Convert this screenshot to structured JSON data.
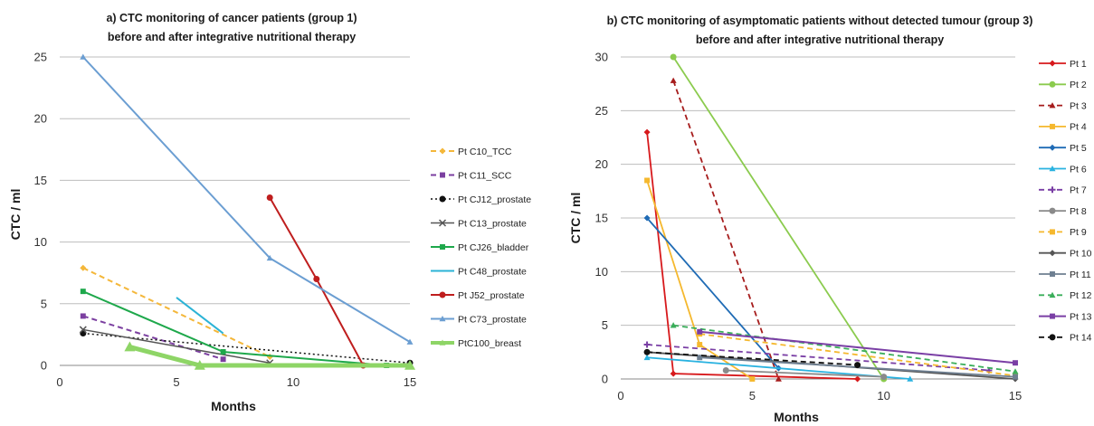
{
  "chart_data": [
    {
      "type": "line",
      "title_lines": [
        "a) CTC monitoring of cancer patients (group 1)",
        "before and after integrative nutritional therapy"
      ],
      "xlabel": "Months",
      "ylabel": "CTC / ml",
      "xlim": [
        0,
        15
      ],
      "ylim": [
        0,
        25
      ],
      "xticks": [
        0,
        5,
        10,
        15
      ],
      "yticks": [
        0,
        5,
        10,
        15,
        20,
        25
      ],
      "grid": "horizontal",
      "legend_position": "right",
      "series": [
        {
          "name": "Pt C10_TCC",
          "color": "#F4B73A",
          "dash": "dashed",
          "marker": "diamond",
          "width": 2,
          "x": [
            1,
            9
          ],
          "y": [
            7.9,
            0.7
          ]
        },
        {
          "name": "Pt C11_SCC",
          "color": "#7B3FA0",
          "dash": "dashed",
          "marker": "square",
          "width": 2,
          "x": [
            1,
            7
          ],
          "y": [
            4.0,
            0.5
          ]
        },
        {
          "name": "Pt CJ12_prostate",
          "color": "#111111",
          "dash": "dotted",
          "marker": "circle",
          "width": 1.5,
          "x": [
            1,
            15
          ],
          "y": [
            2.6,
            0.2
          ]
        },
        {
          "name": "Pt C13_prostate",
          "color": "#555555",
          "dash": "solid",
          "marker": "x",
          "width": 1.5,
          "x": [
            1,
            9
          ],
          "y": [
            2.9,
            0.2
          ]
        },
        {
          "name": "Pt CJ26_bladder",
          "color": "#1EA84B",
          "dash": "solid",
          "marker": "square",
          "width": 2,
          "x": [
            1,
            7,
            14
          ],
          "y": [
            6.0,
            1.1,
            0
          ]
        },
        {
          "name": "Pt C48_prostate",
          "color": "#2BB3D6",
          "dash": "solid",
          "marker": "none",
          "width": 2,
          "x": [
            5,
            7
          ],
          "y": [
            5.5,
            2.6
          ]
        },
        {
          "name": "Pt J52_prostate",
          "color": "#BF1E1E",
          "dash": "solid",
          "marker": "circle",
          "width": 2,
          "x": [
            9,
            11,
            13
          ],
          "y": [
            13.6,
            7.0,
            0
          ]
        },
        {
          "name": "Pt C73_prostate",
          "color": "#6B9ED2",
          "dash": "solid",
          "marker": "triangle",
          "width": 2,
          "x": [
            1,
            9,
            15
          ],
          "y": [
            25.0,
            8.7,
            1.9
          ]
        },
        {
          "name": "PtC100_breast",
          "color": "#8ED566",
          "dash": "solid",
          "marker": "triangle",
          "width": 5,
          "x": [
            3,
            6,
            15
          ],
          "y": [
            1.5,
            0,
            0
          ]
        }
      ]
    },
    {
      "type": "line",
      "title_lines": [
        "b) CTC monitoring of asymptomatic patients without detected tumour (group 3)",
        "before and after integrative nutritional therapy"
      ],
      "xlabel": "Months",
      "ylabel": "CTC / ml",
      "xlim": [
        0,
        15
      ],
      "ylim": [
        0,
        30
      ],
      "xticks": [
        0,
        5,
        10,
        15
      ],
      "yticks": [
        0,
        5,
        10,
        15,
        20,
        25,
        30
      ],
      "grid": "horizontal",
      "legend_position": "right",
      "series": [
        {
          "name": "Pt 1",
          "color": "#D7191C",
          "dash": "solid",
          "marker": "diamond",
          "width": 1.8,
          "x": [
            1,
            2,
            9
          ],
          "y": [
            23.0,
            0.5,
            0
          ]
        },
        {
          "name": "Pt 2",
          "color": "#8BCB4E",
          "dash": "solid",
          "marker": "circle",
          "width": 1.8,
          "x": [
            2,
            10
          ],
          "y": [
            30.0,
            0
          ]
        },
        {
          "name": "Pt 3",
          "color": "#A61C1C",
          "dash": "dashed",
          "marker": "triangle",
          "width": 1.8,
          "x": [
            2,
            6
          ],
          "y": [
            27.8,
            0
          ]
        },
        {
          "name": "Pt 4",
          "color": "#F5B82E",
          "dash": "solid",
          "marker": "square",
          "width": 1.8,
          "x": [
            1,
            3,
            5
          ],
          "y": [
            18.5,
            3.2,
            0
          ]
        },
        {
          "name": "Pt 5",
          "color": "#1F6BB5",
          "dash": "solid",
          "marker": "diamond",
          "width": 1.8,
          "x": [
            1,
            6
          ],
          "y": [
            15.0,
            1.0
          ]
        },
        {
          "name": "Pt 6",
          "color": "#29B2E0",
          "dash": "solid",
          "marker": "triangle",
          "width": 1.8,
          "x": [
            1,
            11
          ],
          "y": [
            2.0,
            0
          ]
        },
        {
          "name": "Pt 7",
          "color": "#7A3FA5",
          "dash": "dashed",
          "marker": "plus",
          "width": 1.8,
          "x": [
            1,
            14
          ],
          "y": [
            3.2,
            0.8
          ]
        },
        {
          "name": "Pt 8",
          "color": "#8A8A8A",
          "dash": "solid",
          "marker": "circle",
          "width": 1.8,
          "x": [
            4,
            10
          ],
          "y": [
            0.8,
            0.2
          ]
        },
        {
          "name": "Pt 9",
          "color": "#F5B82E",
          "dash": "dashed",
          "marker": "square",
          "width": 1.8,
          "x": [
            3,
            15
          ],
          "y": [
            4.2,
            0.3
          ]
        },
        {
          "name": "Pt 10",
          "color": "#555555",
          "dash": "solid",
          "marker": "diamond",
          "width": 1.8,
          "x": [
            1,
            15
          ],
          "y": [
            2.5,
            0
          ]
        },
        {
          "name": "Pt 11",
          "color": "#6E7F91",
          "dash": "solid",
          "marker": "square",
          "width": 1.8,
          "x": [
            3,
            15
          ],
          "y": [
            2.0,
            0.2
          ]
        },
        {
          "name": "Pt 12",
          "color": "#3AAE5A",
          "dash": "dashed",
          "marker": "triangle",
          "width": 1.8,
          "x": [
            2,
            15
          ],
          "y": [
            5.0,
            0.7
          ]
        },
        {
          "name": "Pt 13",
          "color": "#7A3FA5",
          "dash": "solid",
          "marker": "square",
          "width": 2,
          "x": [
            3,
            15
          ],
          "y": [
            4.4,
            1.5
          ]
        },
        {
          "name": "Pt 14",
          "color": "#111111",
          "dash": "dashed",
          "marker": "circle",
          "width": 1.8,
          "x": [
            1,
            9
          ],
          "y": [
            2.5,
            1.3
          ]
        }
      ]
    }
  ]
}
